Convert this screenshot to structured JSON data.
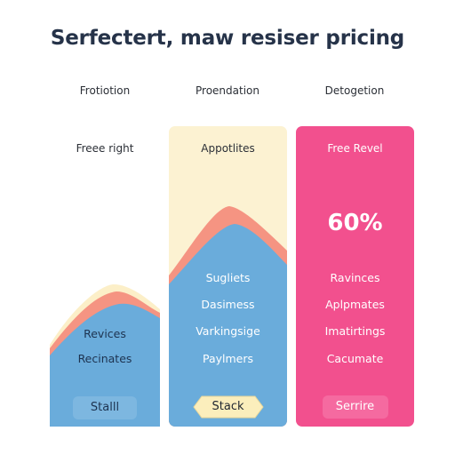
{
  "page": {
    "title": "Serfectert, maw resiser pricing"
  },
  "plans": [
    {
      "heading": "Frotiotion",
      "tagline": "Freee right",
      "features": [
        "Revices",
        "Recinates"
      ],
      "button_label": "Stalll"
    },
    {
      "heading": "Proendation",
      "tagline": "Appotlites",
      "features": [
        "Sugliets",
        "Dasimess",
        "Varkingsige",
        "Paylmers"
      ],
      "button_label": "Stack"
    },
    {
      "heading": "Detogetion",
      "tagline": "Free Revel",
      "highlight_value": "60%",
      "features": [
        "Ravinces",
        "Aplpmates",
        "Imatirtings",
        "Cacumate"
      ],
      "button_label": "Serrire"
    }
  ],
  "colors": {
    "title": "#263349",
    "blue": "#6aacdb",
    "salmon": "#f59482",
    "cream": "#fcf2d2",
    "pink": "#f2508e"
  }
}
